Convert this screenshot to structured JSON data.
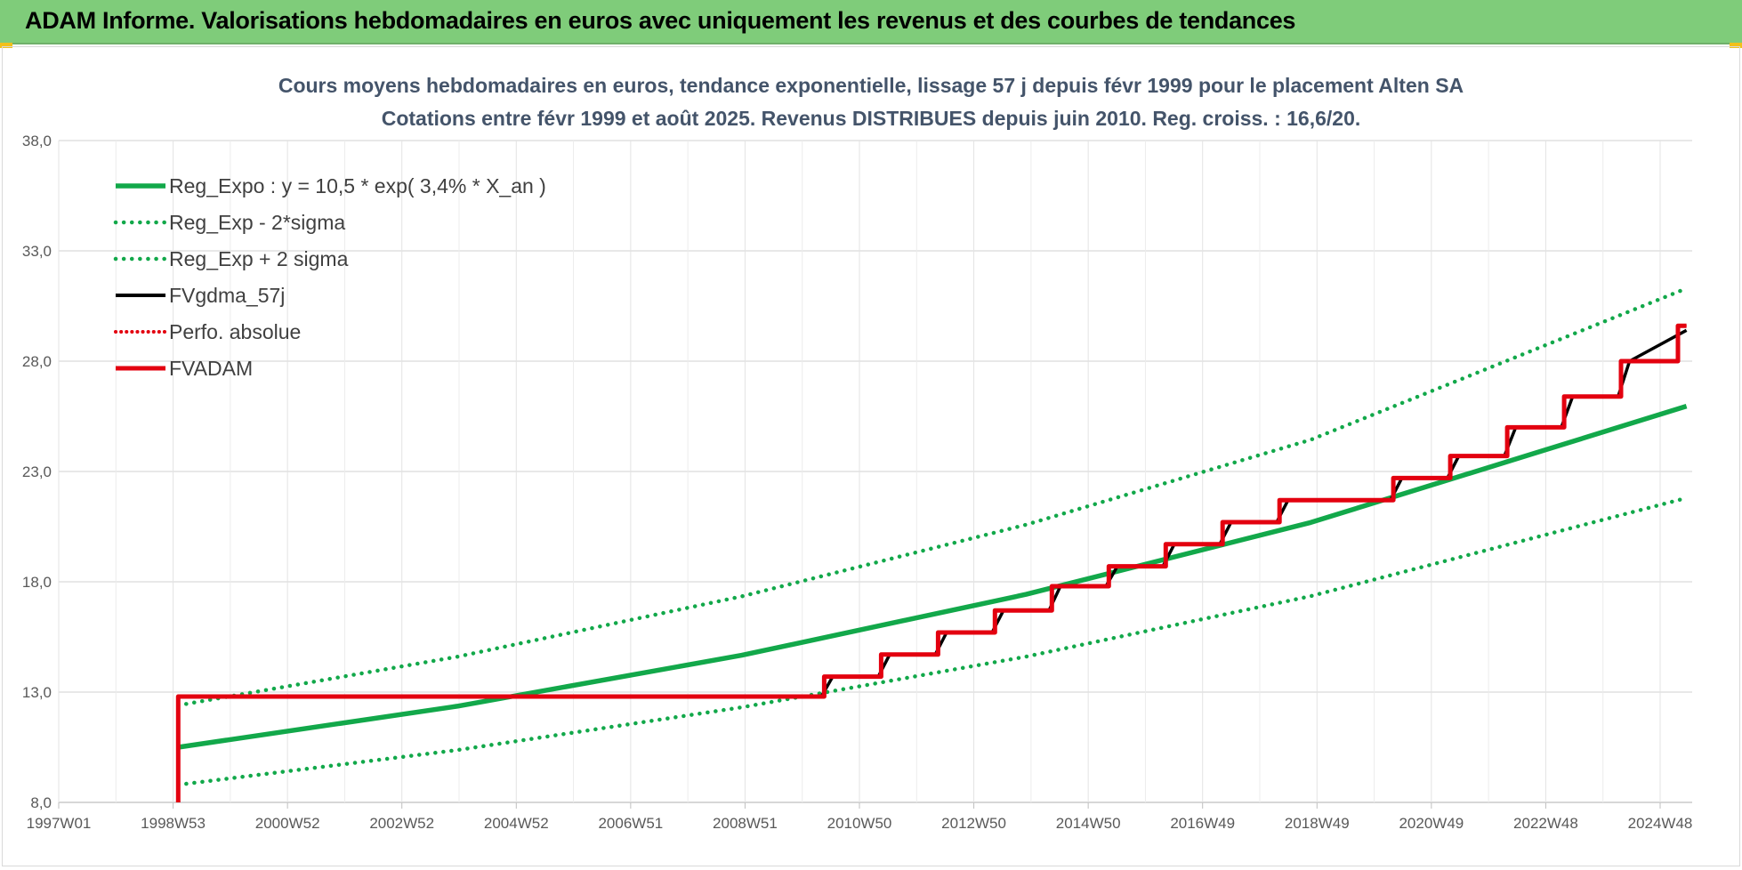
{
  "banner": {
    "title": "ADAM Informe. Valorisations hebdomadaires en euros avec uniquement les revenus et des courbes de tendances",
    "background": "#7fcc7a"
  },
  "chart_data": {
    "type": "line",
    "title": "Cours moyens hebdomadaires en euros, tendance exponentielle, lissage 57 j depuis févr 1999 pour le placement Alten SA",
    "subtitle": "Cotations entre févr 1999 et août 2025. Revenus DISTRIBUES depuis juin 2010. Reg. croiss. : 16,6/20.",
    "xlabel": "",
    "ylabel": "",
    "x_ticks": [
      "1997W01",
      "1998W53",
      "2000W52",
      "2002W52",
      "2004W52",
      "2006W51",
      "2008W51",
      "2010W50",
      "2012W50",
      "2014W50",
      "2016W49",
      "2018W49",
      "2020W49",
      "2022W48",
      "2024W48"
    ],
    "xlim": [
      1997.0,
      2025.7
    ],
    "y_ticks": [
      "8,0",
      "13,0",
      "18,0",
      "23,0",
      "28,0",
      "33,0",
      "38,0"
    ],
    "ylim": [
      8.0,
      38.0
    ],
    "grid": true,
    "legend_position": "top-left",
    "series": [
      {
        "name": "Reg_Expo : y = 10,5 * exp( 3,4% *  X_an )",
        "color": "#12a84a",
        "style": "solid",
        "x": [
          1999.1,
          2004.0,
          2009.0,
          2014.0,
          2019.0,
          2025.6
        ],
        "y": [
          10.5,
          12.36,
          14.67,
          17.43,
          20.69,
          25.96
        ]
      },
      {
        "name": "Reg_Exp - 2*sigma",
        "color": "#12a84a",
        "style": "dotted",
        "x": [
          1999.1,
          2004.0,
          2009.0,
          2014.0,
          2019.0,
          2025.6
        ],
        "y": [
          8.8,
          10.37,
          12.31,
          14.61,
          17.35,
          21.8
        ]
      },
      {
        "name": "Reg_Exp + 2 sigma",
        "color": "#12a84a",
        "style": "dotted",
        "x": [
          1999.1,
          2004.0,
          2009.0,
          2014.0,
          2019.0,
          2025.6
        ],
        "y": [
          12.4,
          14.6,
          17.34,
          20.59,
          24.44,
          31.3
        ]
      },
      {
        "name": "FVgdma_57j",
        "color": "#000000",
        "style": "solid",
        "x": [
          1999.1,
          2010.4,
          2010.6,
          2011.4,
          2011.6,
          2012.4,
          2012.6,
          2013.4,
          2013.6,
          2014.4,
          2014.6,
          2015.4,
          2015.6,
          2016.4,
          2016.6,
          2017.4,
          2017.6,
          2018.4,
          2018.6,
          2020.4,
          2020.6,
          2021.4,
          2021.6,
          2022.4,
          2022.6,
          2023.4,
          2023.6,
          2024.4,
          2024.6,
          2025.6
        ],
        "y": [
          12.8,
          12.8,
          13.7,
          13.7,
          14.7,
          14.7,
          15.7,
          15.7,
          16.7,
          16.7,
          17.8,
          17.8,
          18.7,
          18.7,
          19.7,
          19.7,
          20.7,
          20.7,
          21.7,
          21.7,
          22.7,
          22.7,
          23.7,
          23.7,
          25.0,
          25.0,
          26.4,
          26.4,
          28.0,
          29.4
        ]
      },
      {
        "name": "Perfo. absolue",
        "color": "#e3000f",
        "style": "dotted",
        "x": [
          1999.1,
          2010.45,
          2010.45,
          2011.45,
          2011.45,
          2012.45,
          2012.45,
          2013.45,
          2013.45,
          2014.45,
          2014.45,
          2015.45,
          2015.45,
          2016.45,
          2016.45,
          2017.45,
          2017.45,
          2018.45,
          2018.45,
          2020.45,
          2020.45,
          2021.45,
          2021.45,
          2022.45,
          2022.45,
          2023.45,
          2023.45,
          2024.45,
          2024.45,
          2025.45,
          2025.45,
          2025.6
        ],
        "y": [
          12.8,
          12.8,
          13.7,
          13.7,
          14.7,
          14.7,
          15.7,
          15.7,
          16.7,
          16.7,
          17.8,
          17.8,
          18.7,
          18.7,
          19.7,
          19.7,
          20.7,
          20.7,
          21.7,
          21.7,
          22.7,
          22.7,
          23.7,
          23.7,
          25.0,
          25.0,
          26.4,
          26.4,
          28.0,
          28.0,
          29.6,
          29.6
        ]
      },
      {
        "name": "FVADAM",
        "color": "#e3000f",
        "style": "solid",
        "x": [
          1999.1,
          1999.1,
          2010.45,
          2010.45,
          2011.45,
          2011.45,
          2012.45,
          2012.45,
          2013.45,
          2013.45,
          2014.45,
          2014.45,
          2015.45,
          2015.45,
          2016.45,
          2016.45,
          2017.45,
          2017.45,
          2018.45,
          2018.45,
          2020.45,
          2020.45,
          2021.45,
          2021.45,
          2022.45,
          2022.45,
          2023.45,
          2023.45,
          2024.45,
          2024.45,
          2025.45,
          2025.45,
          2025.6
        ],
        "y": [
          8.0,
          12.8,
          12.8,
          13.7,
          13.7,
          14.7,
          14.7,
          15.7,
          15.7,
          16.7,
          16.7,
          17.8,
          17.8,
          18.7,
          18.7,
          19.7,
          19.7,
          20.7,
          20.7,
          21.7,
          21.7,
          22.7,
          22.7,
          23.7,
          23.7,
          25.0,
          25.0,
          26.4,
          26.4,
          28.0,
          28.0,
          29.6,
          29.6
        ]
      }
    ]
  }
}
